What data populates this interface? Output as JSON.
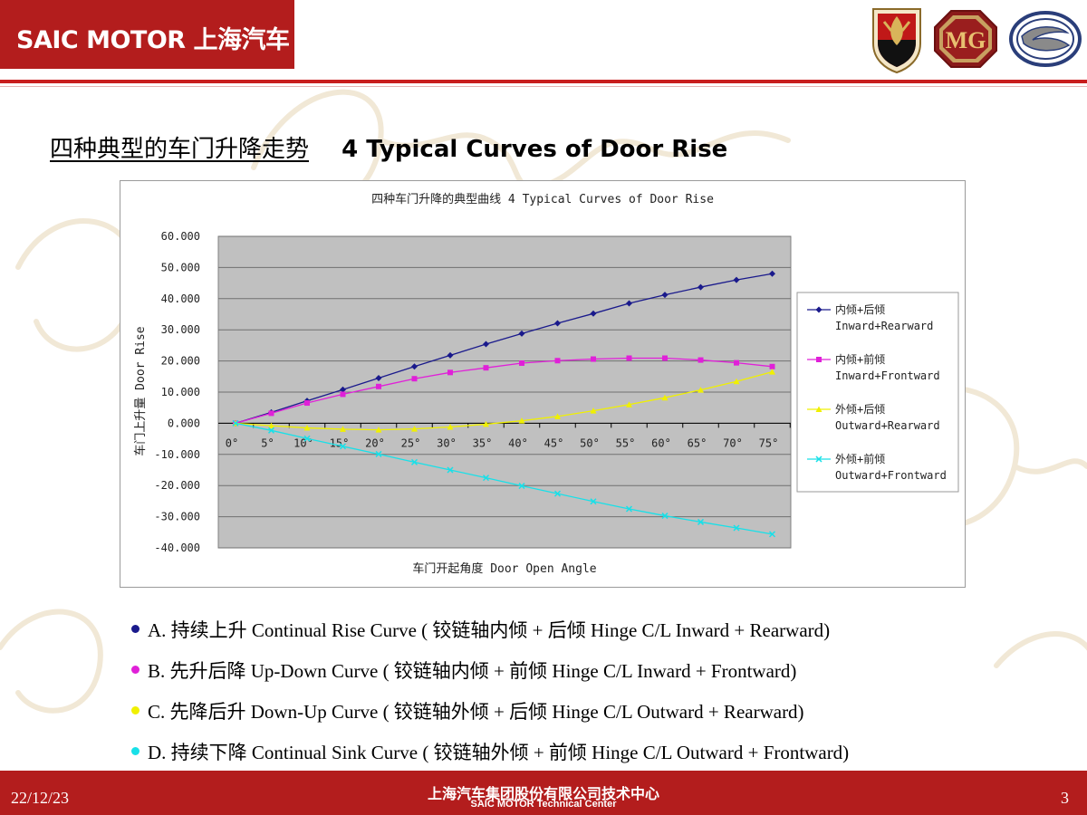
{
  "header": {
    "brand": "SAIC MOTOR 上海汽车",
    "logos": [
      "roewe-shield-logo",
      "mg-logo",
      "ssangyong-logo"
    ],
    "accent_color": "#c81e1e"
  },
  "slide": {
    "title_cn": "四种典型的车门升降走势",
    "title_en": "4 Typical Curves of Door Rise"
  },
  "chart_data": {
    "type": "line",
    "title": "四种车门升降的典型曲线 4 Typical Curves of Door Rise",
    "xlabel": "车门开起角度 Door Open Angle",
    "ylabel": "车门上升量 Door Rise",
    "categories": [
      "0°",
      "5°",
      "10°",
      "15°",
      "20°",
      "25°",
      "30°",
      "35°",
      "40°",
      "45°",
      "50°",
      "55°",
      "60°",
      "65°",
      "70°",
      "75°"
    ],
    "x": [
      0,
      5,
      10,
      15,
      20,
      25,
      30,
      35,
      40,
      45,
      50,
      55,
      60,
      65,
      70,
      75
    ],
    "ylim": [
      -40,
      60
    ],
    "yticks": [
      "60.000",
      "50.000",
      "40.000",
      "30.000",
      "20.000",
      "10.000",
      "0.000",
      "-10.000",
      "-20.000",
      "-30.000",
      "-40.000"
    ],
    "grid": true,
    "legend_position": "right",
    "series": [
      {
        "name": "内倾+后倾",
        "name_en": "Inward+Rearward",
        "color": "#1a1a8c",
        "marker": "diamond",
        "values": [
          0,
          3.5,
          7.2,
          10.8,
          14.5,
          18.2,
          21.8,
          25.4,
          28.8,
          32.1,
          35.2,
          38.5,
          41.2,
          43.7,
          46.0,
          48.0
        ]
      },
      {
        "name": "内倾+前倾",
        "name_en": "Inward+Frontward",
        "color": "#e020d8",
        "marker": "square",
        "values": [
          0,
          3.2,
          6.5,
          9.3,
          11.8,
          14.3,
          16.3,
          17.8,
          19.3,
          20.1,
          20.6,
          20.9,
          20.9,
          20.3,
          19.4,
          18.2
        ]
      },
      {
        "name": "外倾+后倾",
        "name_en": "Outward+Rearward",
        "color": "#f0f000",
        "marker": "triangle",
        "values": [
          0,
          -0.8,
          -1.5,
          -1.9,
          -2.1,
          -1.8,
          -1.2,
          -0.3,
          0.8,
          2.2,
          4.0,
          6.0,
          8.2,
          10.7,
          13.4,
          16.5
        ]
      },
      {
        "name": "外倾+前倾",
        "name_en": "Outward+Frontward",
        "color": "#18e0e8",
        "marker": "x",
        "values": [
          0,
          -2.3,
          -4.9,
          -7.4,
          -9.9,
          -12.5,
          -15.0,
          -17.5,
          -20.1,
          -22.6,
          -25.1,
          -27.5,
          -29.7,
          -31.7,
          -33.6,
          -35.6
        ]
      }
    ]
  },
  "bullets": [
    {
      "color": "#1a1a8c",
      "text": "A.  持续上升   Continual Rise Curve ( 铰链轴内倾 + 后倾   Hinge C/L Inward + Rearward)"
    },
    {
      "color": "#e020d8",
      "text": "B.  先升后降   Up-Down Curve ( 铰链轴内倾 + 前倾   Hinge C/L Inward + Frontward)"
    },
    {
      "color": "#f0f000",
      "text": "C.  先降后升   Down-Up Curve ( 铰链轴外倾 + 后倾   Hinge C/L Outward + Rearward)"
    },
    {
      "color": "#18e0e8",
      "text": "D.  持续下降   Continual Sink Curve ( 铰链轴外倾 + 前倾   Hinge C/L Outward + Frontward)"
    }
  ],
  "footer": {
    "date": "22/12/23",
    "org_cn": "上海汽车集团股份有限公司技术中心",
    "org_en": "SAIC MOTOR Technical Center",
    "page": "3"
  }
}
